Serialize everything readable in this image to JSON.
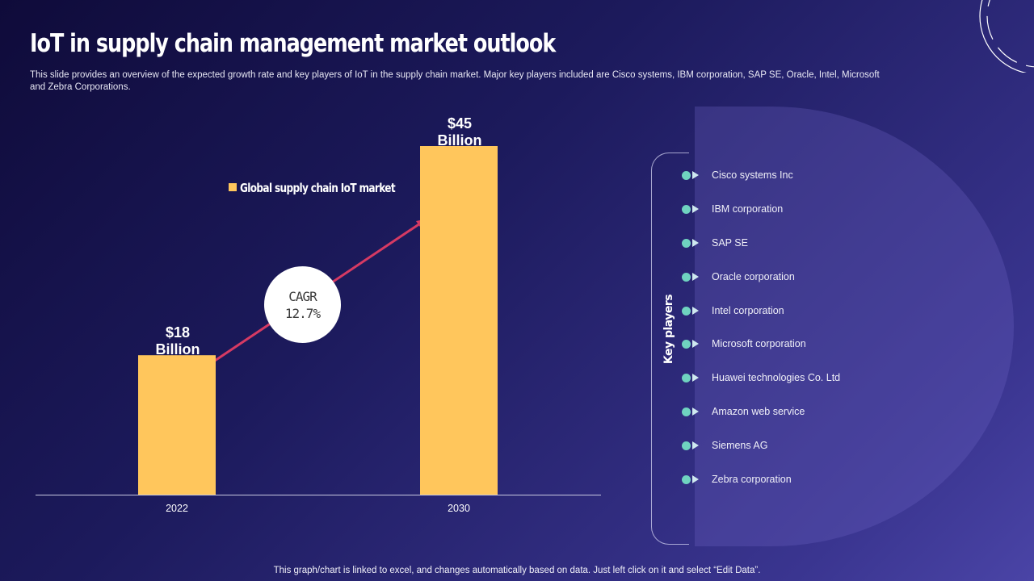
{
  "slide": {
    "title": "IoT in supply chain management market outlook",
    "subtitle": "This slide provides an overview of the expected growth rate and key players of IoT in the supply chain market. Major key players included are Cisco systems, IBM corporation, SAP SE, Oracle, Intel, Microsoft and Zebra Corporations.",
    "footer": "This graph/chart is linked to excel, and changes automatically based on data. Just left click on it and select “Edit Data”."
  },
  "chart_data": {
    "type": "bar",
    "categories": [
      "2022",
      "2030"
    ],
    "series": [
      {
        "name": "Global supply chain IoT market",
        "values": [
          18,
          45
        ]
      }
    ],
    "data_labels": [
      [
        "$18",
        "Billion"
      ],
      [
        "$45",
        "Billion"
      ]
    ],
    "ylim": [
      0,
      50
    ],
    "grid": false,
    "legend": "top",
    "colors": {
      "bar": "#ffc65c",
      "arrow": "#d63a63",
      "axis": "#c8c8e0"
    },
    "annotation": {
      "label": "CAGR",
      "value": "12.7%"
    }
  },
  "key_players": {
    "label": "Key players",
    "items": [
      "Cisco systems Inc",
      "IBM corporation",
      "SAP SE",
      "Oracle corporation",
      "Intel corporation",
      "Microsoft corporation",
      "Huawei technologies Co. Ltd",
      "Amazon web service",
      "Siemens AG",
      "Zebra corporation"
    ],
    "colors": {
      "dot": "#6fd3c0",
      "arrow": "#cfe9f0"
    }
  }
}
